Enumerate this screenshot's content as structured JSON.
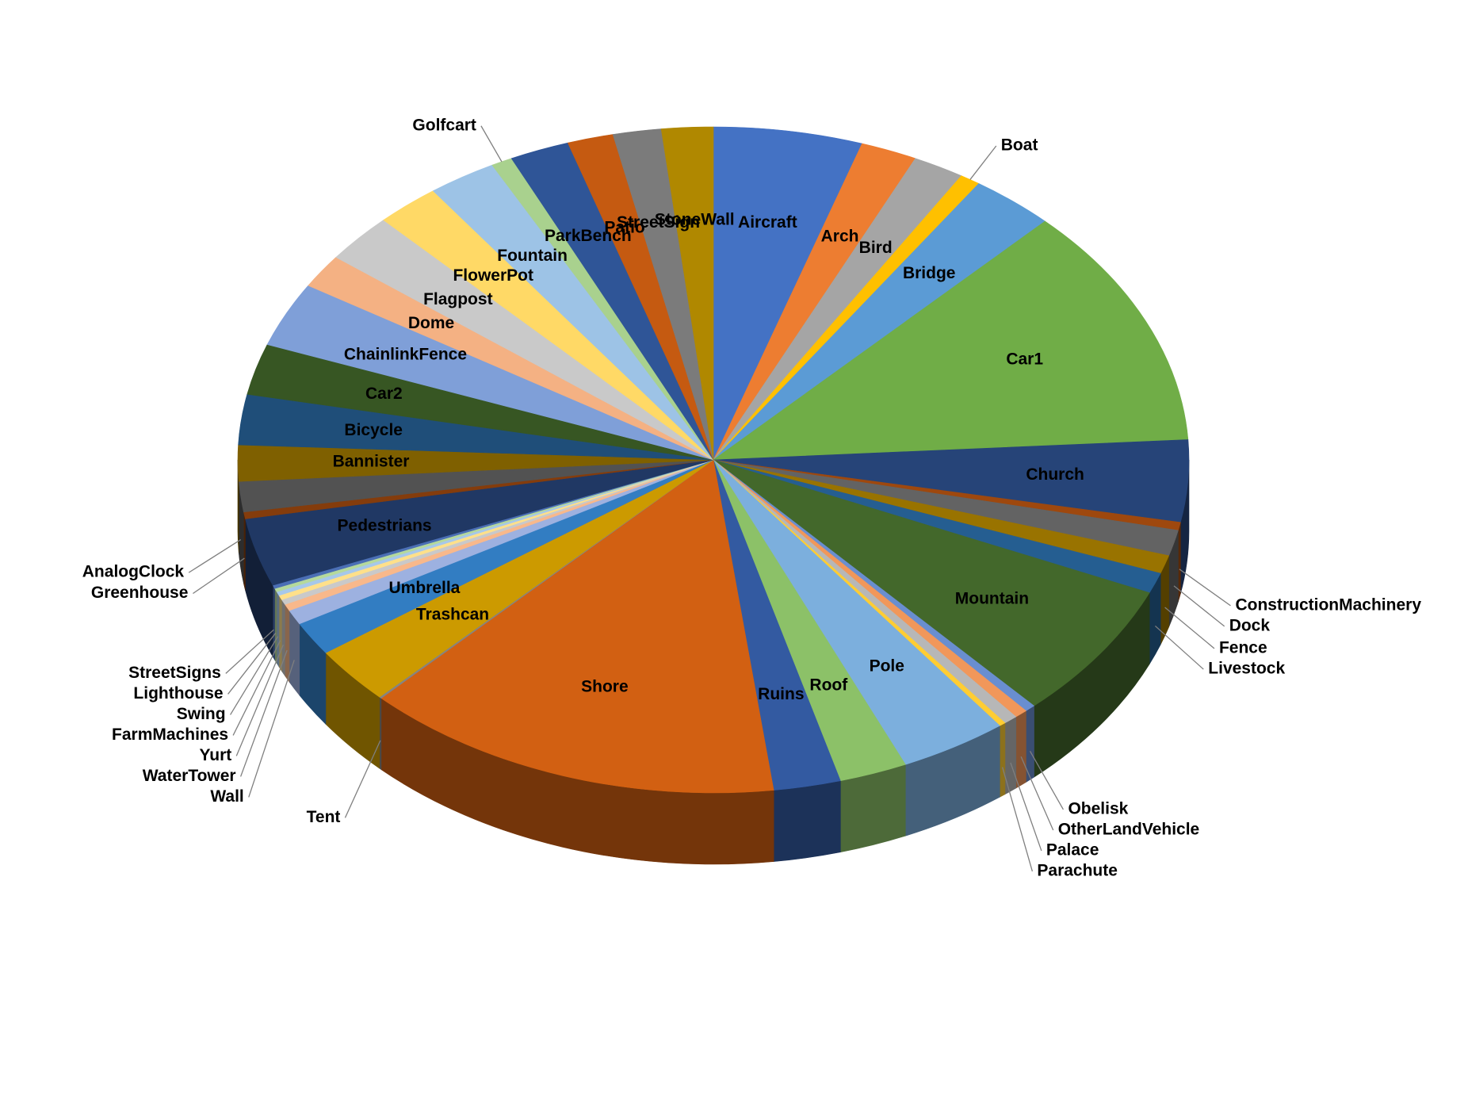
{
  "chart_data": {
    "type": "pie3d",
    "categories": [
      "Aircraft",
      "Arch",
      "Bird",
      "Boat",
      "Bridge",
      "Car1",
      "Church",
      "ConstructionMachinery",
      "Dock",
      "Fence",
      "Livestock",
      "Mountain",
      "Obelisk",
      "OtherLandVehicle",
      "Palace",
      "Parachute",
      "Pole",
      "Roof",
      "Ruins",
      "Shore",
      "Tent",
      "Trashcan",
      "Umbrella",
      "Wall",
      "WaterTower",
      "Yurt",
      "FarmMachines",
      "Swing",
      "Lighthouse",
      "StreetSigns",
      "Pedestrians",
      "Greenhouse",
      "AnalogClock",
      "Bannister",
      "Bicycle",
      "Car2",
      "ChainlinkFence",
      "Dome",
      "Flagpost",
      "FlowerPot",
      "Fountain",
      "Golfcart",
      "ParkBench",
      "Patio",
      "StreetSign",
      "StoneWall"
    ],
    "values": [
      5.06,
      1.92,
      1.75,
      0.69,
      2.86,
      11.75,
      3.97,
      0.39,
      1.25,
      0.89,
      1.0,
      6.69,
      0.36,
      0.44,
      0.47,
      0.22,
      3.67,
      2.31,
      2.28,
      14.33,
      0.08,
      2.78,
      1.64,
      0.72,
      0.33,
      0.25,
      0.22,
      0.19,
      0.17,
      0.17,
      3.31,
      0.33,
      1.47,
      1.75,
      2.44,
      2.47,
      3.14,
      1.64,
      2.39,
      2.17,
      2.33,
      0.72,
      2.03,
      1.56,
      1.64,
      1.75
    ],
    "colors": [
      "#4472c4",
      "#ed7d31",
      "#a5a5a5",
      "#ffc000",
      "#5b9bd5",
      "#70ad47",
      "#264478",
      "#9e480e",
      "#636363",
      "#997300",
      "#255e91",
      "#43682b",
      "#698ed0",
      "#f1975a",
      "#b7b7b7",
      "#ffcd33",
      "#7cafdd",
      "#8cc168",
      "#335aa1",
      "#d26012",
      "#848484",
      "#cc9a00",
      "#327dc2",
      "#9db1e0",
      "#f8b88b",
      "#c9c9c9",
      "#ffe08a",
      "#a6c8ea",
      "#b5d99c",
      "#4b6fb5",
      "#203864",
      "#843c0c",
      "#525252",
      "#7f6000",
      "#1f4e79",
      "#375623",
      "#7f9fd8",
      "#f4b183",
      "#c9c9c9",
      "#ffd966",
      "#9dc3e6",
      "#a9d18e",
      "#2f5597",
      "#c55a11",
      "#7b7b7b",
      "#b08800"
    ]
  }
}
